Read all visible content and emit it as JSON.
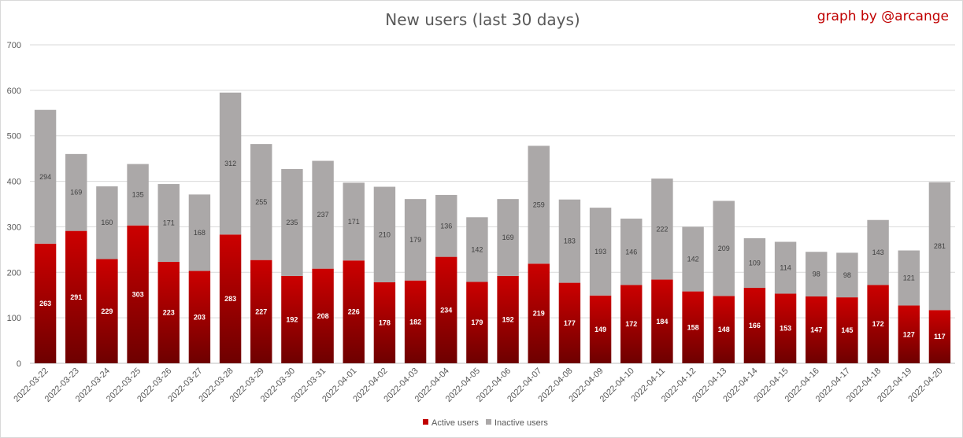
{
  "chart_data": {
    "type": "bar",
    "stacked": true,
    "title": "New users (last 30 days)",
    "credit": "graph by @arcange",
    "xlabel": "",
    "ylabel": "",
    "ylim": [
      0,
      700
    ],
    "yticks": [
      0,
      100,
      200,
      300,
      400,
      500,
      600,
      700
    ],
    "grid": true,
    "legend_position": "bottom",
    "categories": [
      "2022-03-22",
      "2022-03-23",
      "2022-03-24",
      "2022-03-25",
      "2022-03-26",
      "2022-03-27",
      "2022-03-28",
      "2022-03-29",
      "2022-03-30",
      "2022-03-31",
      "2022-04-01",
      "2022-04-02",
      "2022-04-03",
      "2022-04-04",
      "2022-04-05",
      "2022-04-06",
      "2022-04-07",
      "2022-04-08",
      "2022-04-09",
      "2022-04-10",
      "2022-04-11",
      "2022-04-12",
      "2022-04-13",
      "2022-04-14",
      "2022-04-15",
      "2022-04-16",
      "2022-04-17",
      "2022-04-18",
      "2022-04-19",
      "2022-04-20"
    ],
    "series": [
      {
        "name": "Active users",
        "color": "#c00000",
        "values": [
          263,
          291,
          229,
          303,
          223,
          203,
          283,
          227,
          192,
          208,
          226,
          178,
          182,
          234,
          179,
          192,
          219,
          177,
          149,
          172,
          184,
          158,
          148,
          166,
          153,
          147,
          145,
          172,
          127,
          117
        ]
      },
      {
        "name": "Inactive users",
        "color": "#aba8a8",
        "values": [
          294,
          169,
          160,
          135,
          171,
          168,
          312,
          255,
          235,
          237,
          171,
          210,
          179,
          136,
          142,
          169,
          259,
          183,
          193,
          146,
          222,
          142,
          209,
          109,
          114,
          98,
          98,
          143,
          121,
          281
        ]
      }
    ]
  }
}
